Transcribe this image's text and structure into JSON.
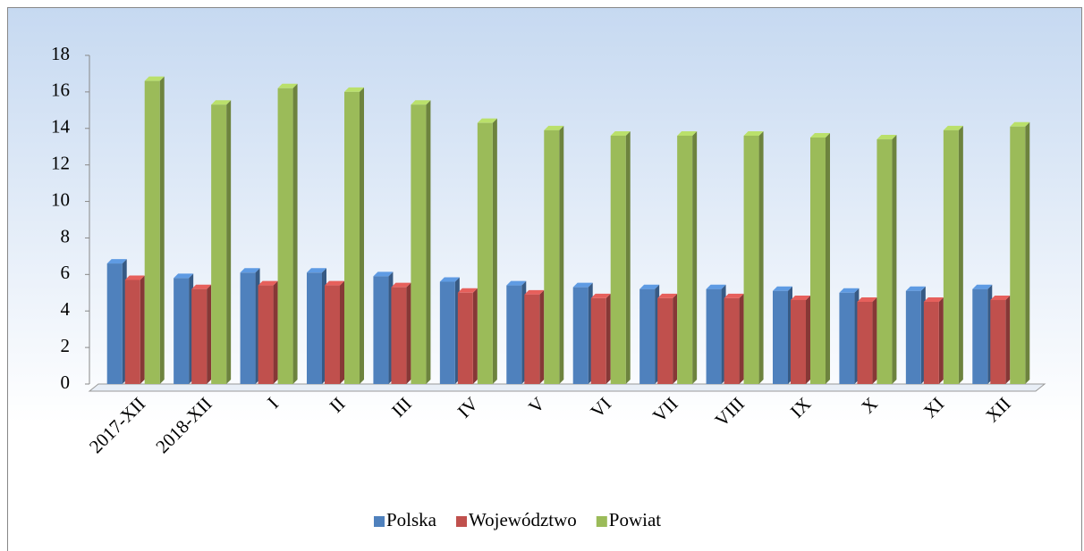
{
  "chart_data": {
    "type": "bar",
    "categories": [
      "2017-XII",
      "2018-XII",
      "I",
      "II",
      "III",
      "IV",
      "V",
      "VI",
      "VII",
      "VIII",
      "IX",
      "X",
      "XI",
      "XII"
    ],
    "series": [
      {
        "name": "Polska",
        "color": "#4f81bd",
        "values": [
          6.6,
          5.8,
          6.1,
          6.1,
          5.9,
          5.6,
          5.4,
          5.3,
          5.2,
          5.2,
          5.1,
          5.0,
          5.1,
          5.2
        ]
      },
      {
        "name": "Województwo",
        "color": "#c0504d",
        "values": [
          5.7,
          5.2,
          5.4,
          5.4,
          5.3,
          5.0,
          4.9,
          4.7,
          4.7,
          4.7,
          4.6,
          4.5,
          4.5,
          4.6
        ]
      },
      {
        "name": "Powiat",
        "color": "#9bbb59",
        "values": [
          16.6,
          15.3,
          16.2,
          16.0,
          15.3,
          14.3,
          13.9,
          13.6,
          13.6,
          13.6,
          13.5,
          13.4,
          13.9,
          14.1
        ]
      }
    ],
    "ylim": [
      0,
      18
    ],
    "yticks": [
      0,
      2,
      4,
      6,
      8,
      10,
      12,
      14,
      16,
      18
    ],
    "legend": "bottom"
  }
}
